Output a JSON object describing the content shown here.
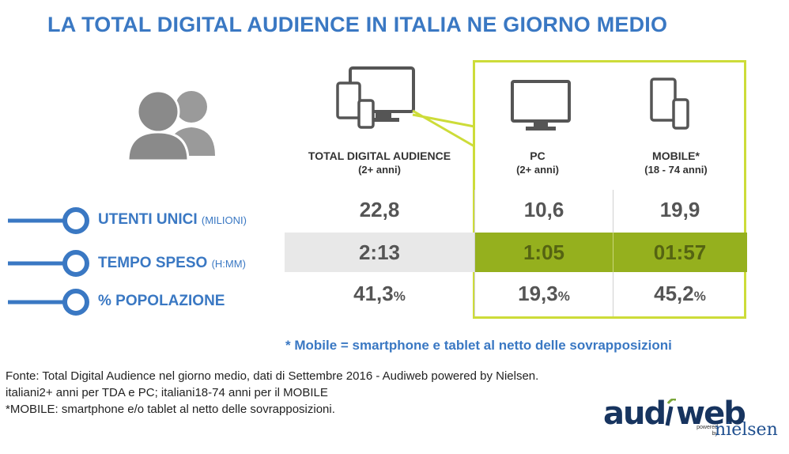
{
  "title": "LA TOTAL DIGITAL AUDIENCE IN ITALIA NE GIORNO MEDIO",
  "icons": {
    "people": "people-icon",
    "all_devices": "multi-device-icon",
    "pc": "monitor-icon",
    "mobile": "mobile-devices-icon"
  },
  "columns": [
    {
      "name": "TOTAL DIGITAL AUDIENCE",
      "sub": "(2+ anni)"
    },
    {
      "name": "PC",
      "sub": "(2+ anni)"
    },
    {
      "name": "MOBILE*",
      "sub": "(18 - 74 anni)"
    }
  ],
  "rows": [
    {
      "label": "UTENTI UNICI",
      "unit": "(MILIONI)",
      "values": [
        "22,8",
        "10,6",
        "19,9"
      ],
      "suffix": [
        "",
        "",
        ""
      ]
    },
    {
      "label": "TEMPO SPESO",
      "unit": "(H:MM)",
      "values": [
        "2:13",
        "1:05",
        "01:57"
      ],
      "suffix": [
        "",
        "",
        ""
      ]
    },
    {
      "label": "% POPOLAZIONE",
      "unit": "",
      "values": [
        "41,3",
        "19,3",
        "45,2"
      ],
      "suffix": [
        "%",
        "%",
        "%"
      ]
    }
  ],
  "chart_data": {
    "type": "table",
    "title": "LA TOTAL DIGITAL AUDIENCE IN ITALIA NE GIORNO MEDIO",
    "columns": [
      "TOTAL DIGITAL AUDIENCE (2+ anni)",
      "PC (2+ anni)",
      "MOBILE* (18 - 74 anni)"
    ],
    "rows": [
      {
        "label": "UTENTI UNICI (MILIONI)",
        "values": [
          22.8,
          10.6,
          19.9
        ]
      },
      {
        "label": "TEMPO SPESO (H:MM)",
        "values": [
          "2:13",
          "1:05",
          "01:57"
        ]
      },
      {
        "label": "% POPOLAZIONE",
        "values": [
          41.3,
          19.3,
          45.2
        ]
      }
    ]
  },
  "footnote": "* Mobile = smartphone e tablet al netto delle sovrapposizioni",
  "source_lines": [
    "Fonte: Total Digital Audience nel giorno medio, dati di Settembre 2016 - Audiweb powered by Nielsen.",
    "italiani2+ anni per TDA e PC; italiani18-74 anni per il MOBILE",
    "*MOBILE: smartphone e/o tablet al netto delle sovrapposizioni."
  ],
  "logo": {
    "brand_a": "aud",
    "brand_b": "web",
    "powered_1": "powered",
    "powered_2": "by",
    "partner": "nielsen"
  },
  "colors": {
    "accent_blue": "#3a78c3",
    "highlight_lime": "#cddc39",
    "highlight_green": "#95b01e",
    "icon_gray": "#8c8c8c"
  }
}
